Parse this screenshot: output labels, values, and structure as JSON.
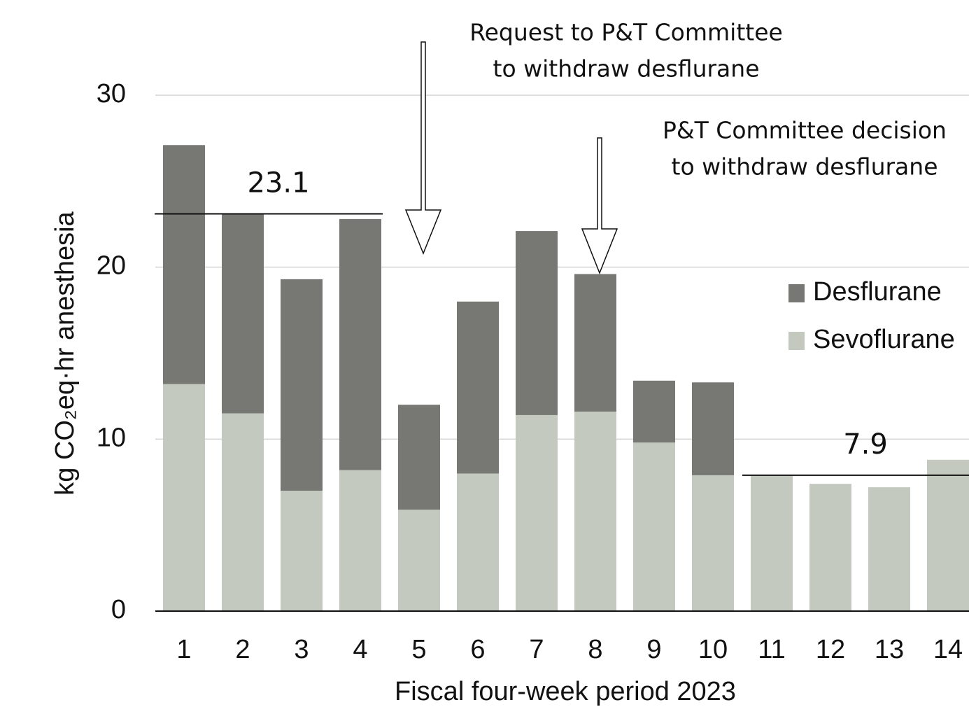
{
  "chart_data": {
    "type": "stacked_bar",
    "x_label": "Fiscal four-week period 2023",
    "y_label": "kg CO₂eq·hr anesthesia",
    "categories": [
      "1",
      "2",
      "3",
      "4",
      "5",
      "6",
      "7",
      "8",
      "9",
      "10",
      "11",
      "12",
      "13",
      "14"
    ],
    "series": [
      {
        "name": "Desflurane",
        "color": "#777874",
        "values": [
          13.9,
          11.6,
          12.3,
          14.6,
          6.1,
          10.0,
          10.7,
          8.0,
          3.6,
          5.4,
          0,
          0,
          0,
          0
        ]
      },
      {
        "name": "Sevoflurane",
        "color": "#c3c9be",
        "values": [
          13.2,
          11.5,
          7.0,
          8.2,
          5.9,
          8.0,
          11.4,
          11.6,
          9.8,
          7.9,
          7.9,
          7.4,
          7.2,
          8.8
        ]
      }
    ],
    "ylim": [
      0,
      30
    ],
    "yticks": [
      0,
      10,
      20,
      30
    ],
    "grid": true,
    "legend": "right",
    "reference_lines": [
      {
        "value": 23.1,
        "start_category": "1",
        "end_category": "4"
      },
      {
        "value": 7.9,
        "start_category": "11",
        "end_category": "14"
      }
    ],
    "annotations": [
      {
        "lines": [
          "Request to P&T Committee",
          "to withdraw desflurane"
        ],
        "category": "5"
      },
      {
        "lines": [
          "P&T Committee decision",
          "to withdraw desflurane"
        ],
        "category": "8"
      }
    ]
  }
}
